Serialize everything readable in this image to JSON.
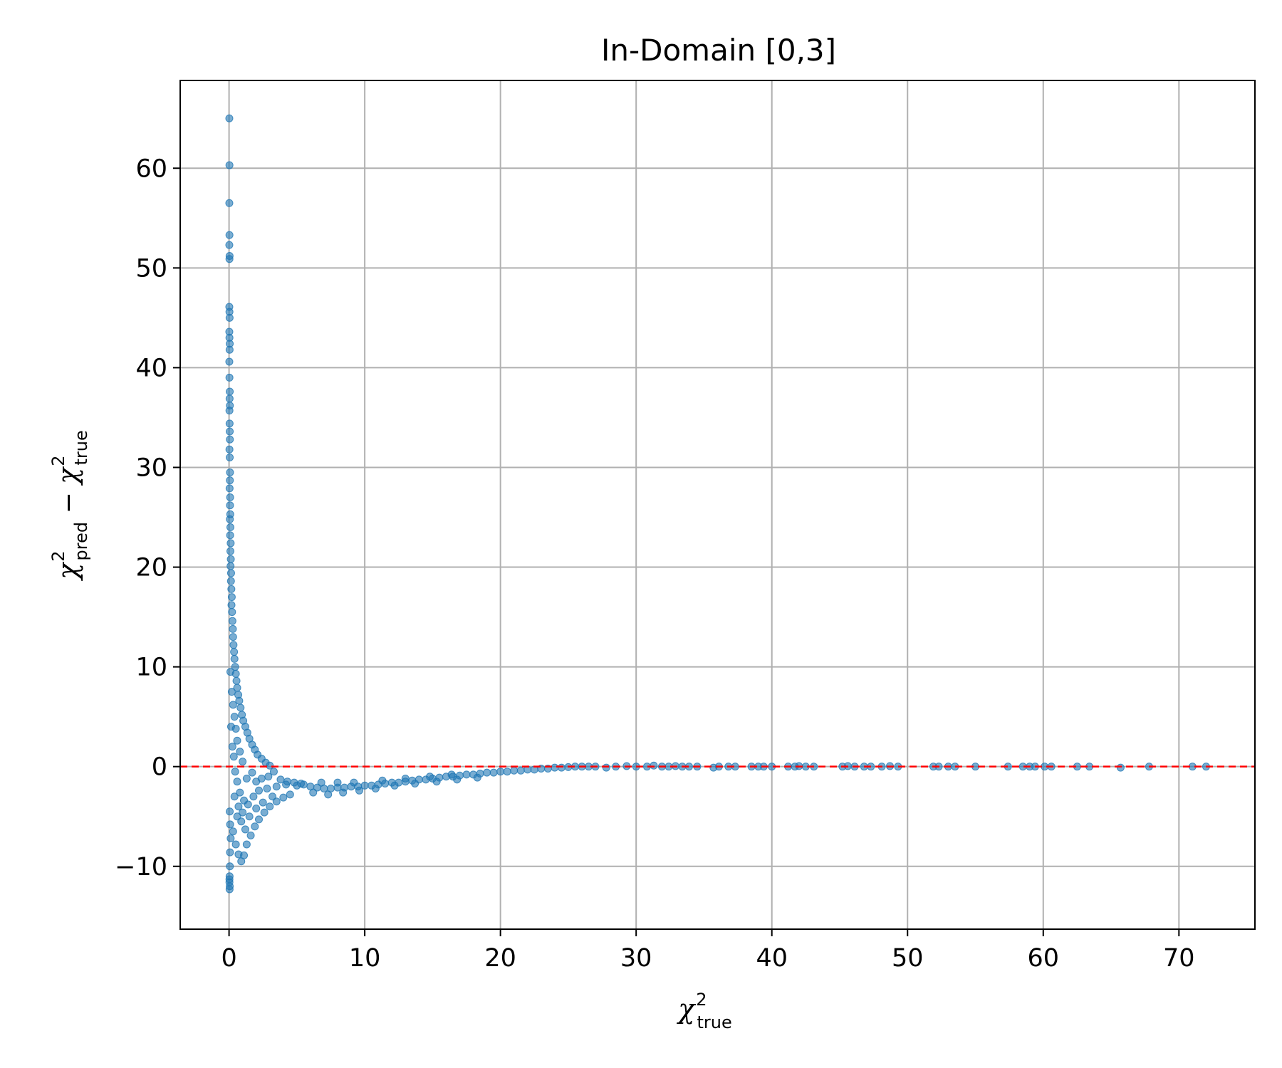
{
  "chart_data": {
    "type": "scatter",
    "title": "In-Domain [0,3]",
    "xlabel": {
      "base": "χ",
      "sup": "2",
      "sub": "true"
    },
    "ylabel": {
      "a_base": "χ",
      "a_sup": "2",
      "a_sub": "pred",
      "op": " − ",
      "b_base": "χ",
      "b_sup": "2",
      "b_sub": "true"
    },
    "xlim": [
      -3.6,
      75.6
    ],
    "ylim": [
      -16.3,
      68.8
    ],
    "xticks": [
      0,
      10,
      20,
      30,
      40,
      50,
      60,
      70
    ],
    "xtick_labels": [
      "0",
      "10",
      "20",
      "30",
      "40",
      "50",
      "60",
      "70"
    ],
    "yticks": [
      -10,
      0,
      10,
      20,
      30,
      40,
      50,
      60
    ],
    "ytick_labels": [
      "−10",
      "0",
      "10",
      "20",
      "30",
      "40",
      "50",
      "60"
    ],
    "grid": true,
    "reference_line": {
      "y": 0,
      "color": "#ff0000",
      "style": "dashed"
    },
    "marker_color": "#1f77b4",
    "series": [
      {
        "points": [
          [
            0.02,
            65.0
          ],
          [
            0.03,
            60.3
          ],
          [
            0.02,
            56.5
          ],
          [
            0.03,
            53.3
          ],
          [
            0.02,
            52.3
          ],
          [
            0.04,
            51.2
          ],
          [
            0.03,
            50.9
          ],
          [
            0.02,
            46.1
          ],
          [
            0.03,
            45.6
          ],
          [
            0.04,
            45.0
          ],
          [
            0.02,
            43.6
          ],
          [
            0.03,
            43.0
          ],
          [
            0.05,
            42.4
          ],
          [
            0.04,
            41.8
          ],
          [
            0.02,
            40.6
          ],
          [
            0.03,
            39.0
          ],
          [
            0.05,
            37.6
          ],
          [
            0.04,
            36.9
          ],
          [
            0.06,
            36.2
          ],
          [
            0.03,
            35.7
          ],
          [
            0.04,
            34.4
          ],
          [
            0.05,
            33.6
          ],
          [
            0.06,
            32.8
          ],
          [
            0.03,
            31.8
          ],
          [
            0.05,
            31.0
          ],
          [
            0.07,
            29.5
          ],
          [
            0.06,
            28.7
          ],
          [
            0.04,
            27.9
          ],
          [
            0.08,
            27.0
          ],
          [
            0.07,
            26.2
          ],
          [
            0.09,
            25.3
          ],
          [
            0.06,
            24.8
          ],
          [
            0.1,
            24.0
          ],
          [
            0.08,
            23.2
          ],
          [
            0.12,
            22.4
          ],
          [
            0.1,
            21.6
          ],
          [
            0.13,
            20.8
          ],
          [
            0.11,
            20.1
          ],
          [
            0.15,
            19.4
          ],
          [
            0.14,
            18.6
          ],
          [
            0.17,
            17.8
          ],
          [
            0.2,
            17.0
          ],
          [
            0.18,
            16.2
          ],
          [
            0.22,
            15.5
          ],
          [
            0.25,
            14.6
          ],
          [
            0.28,
            13.8
          ],
          [
            0.3,
            13.0
          ],
          [
            0.33,
            12.2
          ],
          [
            0.37,
            11.5
          ],
          [
            0.4,
            10.8
          ],
          [
            0.45,
            10.0
          ],
          [
            0.5,
            9.3
          ],
          [
            0.55,
            8.6
          ],
          [
            0.6,
            7.9
          ],
          [
            0.68,
            7.2
          ],
          [
            0.75,
            6.6
          ],
          [
            0.85,
            5.9
          ],
          [
            0.95,
            5.2
          ],
          [
            1.05,
            4.6
          ],
          [
            1.2,
            4.0
          ],
          [
            1.35,
            3.4
          ],
          [
            1.5,
            2.8
          ],
          [
            1.7,
            2.2
          ],
          [
            1.9,
            1.7
          ],
          [
            2.1,
            1.2
          ],
          [
            2.4,
            0.8
          ],
          [
            2.7,
            0.4
          ],
          [
            3.0,
            0.1
          ],
          [
            0.1,
            9.5
          ],
          [
            0.2,
            7.5
          ],
          [
            0.3,
            6.2
          ],
          [
            0.4,
            5.0
          ],
          [
            0.5,
            3.8
          ],
          [
            0.6,
            2.6
          ],
          [
            0.8,
            1.5
          ],
          [
            1.0,
            0.5
          ],
          [
            0.15,
            4.0
          ],
          [
            0.25,
            2.0
          ],
          [
            0.35,
            1.0
          ],
          [
            0.45,
            -0.5
          ],
          [
            0.6,
            -1.5
          ],
          [
            0.8,
            -2.6
          ],
          [
            1.1,
            -3.4
          ],
          [
            0.05,
            -4.5
          ],
          [
            0.08,
            -5.8
          ],
          [
            0.12,
            -7.2
          ],
          [
            0.07,
            -8.6
          ],
          [
            0.06,
            -10.0
          ],
          [
            0.04,
            -11.0
          ],
          [
            0.03,
            -11.6
          ],
          [
            0.05,
            -12.0
          ],
          [
            0.04,
            -12.3
          ],
          [
            0.03,
            -11.3
          ],
          [
            0.3,
            -6.5
          ],
          [
            0.5,
            -7.8
          ],
          [
            0.7,
            -8.8
          ],
          [
            0.9,
            -9.5
          ],
          [
            1.1,
            -8.9
          ],
          [
            1.3,
            -7.8
          ],
          [
            1.6,
            -6.9
          ],
          [
            1.9,
            -6.0
          ],
          [
            2.2,
            -5.3
          ],
          [
            2.6,
            -4.6
          ],
          [
            3.0,
            -4.0
          ],
          [
            3.5,
            -3.5
          ],
          [
            4.0,
            -3.1
          ],
          [
            4.5,
            -2.8
          ],
          [
            0.6,
            -5.0
          ],
          [
            0.9,
            -5.5
          ],
          [
            1.2,
            -6.3
          ],
          [
            1.5,
            -5.0
          ],
          [
            2.0,
            -4.2
          ],
          [
            2.5,
            -3.6
          ],
          [
            3.2,
            -3.0
          ],
          [
            0.4,
            -3.0
          ],
          [
            0.7,
            -4.0
          ],
          [
            1.0,
            -4.6
          ],
          [
            1.4,
            -3.8
          ],
          [
            1.8,
            -3.0
          ],
          [
            2.2,
            -2.4
          ],
          [
            2.8,
            -2.2
          ],
          [
            3.5,
            -2.0
          ],
          [
            4.2,
            -1.8
          ],
          [
            5.0,
            -1.9
          ],
          [
            1.3,
            -1.2
          ],
          [
            1.7,
            -0.6
          ],
          [
            2.0,
            -1.5
          ],
          [
            2.4,
            -1.2
          ],
          [
            2.9,
            -1.0
          ],
          [
            3.3,
            -0.5
          ],
          [
            3.8,
            -1.3
          ],
          [
            4.3,
            -1.5
          ],
          [
            4.8,
            -1.6
          ],
          [
            5.3,
            -1.7
          ],
          [
            5.5,
            -1.8
          ],
          [
            6.0,
            -2.0
          ],
          [
            6.5,
            -2.1
          ],
          [
            7.0,
            -2.2
          ],
          [
            7.5,
            -2.2
          ],
          [
            8.0,
            -2.1
          ],
          [
            8.5,
            -2.1
          ],
          [
            9.0,
            -2.0
          ],
          [
            9.5,
            -2.0
          ],
          [
            10.0,
            -1.9
          ],
          [
            10.5,
            -1.9
          ],
          [
            11.0,
            -1.8
          ],
          [
            11.5,
            -1.7
          ],
          [
            12.0,
            -1.6
          ],
          [
            12.5,
            -1.6
          ],
          [
            13.0,
            -1.5
          ],
          [
            13.5,
            -1.4
          ],
          [
            14.0,
            -1.3
          ],
          [
            14.5,
            -1.3
          ],
          [
            15.0,
            -1.2
          ],
          [
            15.5,
            -1.1
          ],
          [
            16.0,
            -1.0
          ],
          [
            16.5,
            -1.0
          ],
          [
            17.0,
            -0.9
          ],
          [
            17.5,
            -0.8
          ],
          [
            18.0,
            -0.8
          ],
          [
            18.5,
            -0.7
          ],
          [
            19.0,
            -0.6
          ],
          [
            19.5,
            -0.6
          ],
          [
            20.0,
            -0.5
          ],
          [
            20.5,
            -0.5
          ],
          [
            21.0,
            -0.4
          ],
          [
            21.5,
            -0.4
          ],
          [
            22.0,
            -0.3
          ],
          [
            22.5,
            -0.3
          ],
          [
            23.0,
            -0.2
          ],
          [
            23.5,
            -0.2
          ],
          [
            24.0,
            -0.1
          ],
          [
            24.5,
            -0.1
          ],
          [
            25.0,
            -0.05
          ],
          [
            25.5,
            0.0
          ],
          [
            26.0,
            0.0
          ],
          [
            6.2,
            -2.6
          ],
          [
            7.3,
            -2.8
          ],
          [
            8.4,
            -2.6
          ],
          [
            9.6,
            -2.4
          ],
          [
            10.8,
            -2.2
          ],
          [
            12.2,
            -1.9
          ],
          [
            13.7,
            -1.7
          ],
          [
            15.3,
            -1.5
          ],
          [
            16.8,
            -1.3
          ],
          [
            18.3,
            -1.1
          ],
          [
            6.8,
            -1.6
          ],
          [
            8.0,
            -1.6
          ],
          [
            9.2,
            -1.6
          ],
          [
            11.3,
            -1.4
          ],
          [
            13.0,
            -1.2
          ],
          [
            14.8,
            -1.0
          ],
          [
            16.4,
            -0.8
          ],
          [
            26.5,
            0.0
          ],
          [
            27.0,
            0.0
          ],
          [
            27.8,
            -0.1
          ],
          [
            28.5,
            0.0
          ],
          [
            29.3,
            0.05
          ],
          [
            30.0,
            0.0
          ],
          [
            30.8,
            0.0
          ],
          [
            31.3,
            0.1
          ],
          [
            31.9,
            0.0
          ],
          [
            32.4,
            0.0
          ],
          [
            32.9,
            0.05
          ],
          [
            33.4,
            0.0
          ],
          [
            33.9,
            0.0
          ],
          [
            34.5,
            0.0
          ],
          [
            35.7,
            -0.1
          ],
          [
            36.1,
            0.0
          ],
          [
            36.8,
            0.0
          ],
          [
            37.3,
            0.0
          ],
          [
            38.5,
            0.0
          ],
          [
            39.0,
            0.0
          ],
          [
            39.4,
            0.0
          ],
          [
            40.0,
            0.0
          ],
          [
            41.2,
            0.0
          ],
          [
            41.7,
            0.0
          ],
          [
            42.0,
            0.05
          ],
          [
            42.5,
            0.0
          ],
          [
            43.1,
            0.0
          ],
          [
            45.2,
            0.0
          ],
          [
            45.6,
            0.05
          ],
          [
            46.1,
            0.0
          ],
          [
            46.8,
            0.0
          ],
          [
            47.3,
            0.0
          ],
          [
            48.1,
            0.0
          ],
          [
            48.7,
            0.05
          ],
          [
            49.3,
            0.0
          ],
          [
            51.9,
            0.0
          ],
          [
            52.3,
            0.0
          ],
          [
            53.0,
            0.0
          ],
          [
            53.5,
            0.0
          ],
          [
            55.0,
            0.0
          ],
          [
            57.4,
            0.0
          ],
          [
            58.5,
            0.0
          ],
          [
            59.0,
            0.0
          ],
          [
            59.4,
            0.0
          ],
          [
            60.1,
            0.0
          ],
          [
            60.6,
            0.0
          ],
          [
            62.5,
            0.0
          ],
          [
            63.4,
            0.0
          ],
          [
            65.7,
            -0.1
          ],
          [
            67.8,
            0.0
          ],
          [
            71.0,
            0.0
          ],
          [
            72.0,
            0.0
          ]
        ]
      }
    ]
  }
}
